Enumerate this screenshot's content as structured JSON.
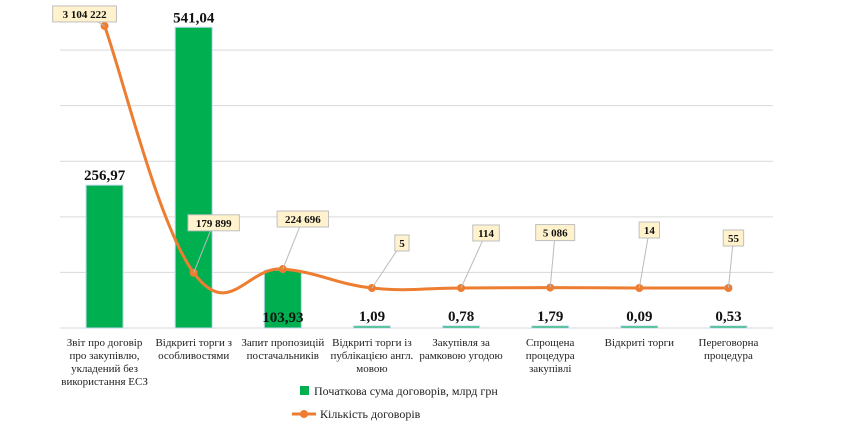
{
  "chart_data": {
    "type": "bar+line",
    "categories": [
      [
        "Звіт про договір",
        "про закупівлю,",
        "укладений без",
        "використання ЕСЗ"
      ],
      [
        "Відкриті торги з",
        "особливостями"
      ],
      [
        "Запит пропозицій",
        "постачальників"
      ],
      [
        "Відкриті торги із",
        "публікацією англ.",
        "мовою"
      ],
      [
        "Закупівля за",
        "рамковою угодою"
      ],
      [
        "Спрощена",
        "процедура",
        "закупівлі"
      ],
      [
        "Відкриті торги"
      ],
      [
        "Переговорна",
        "процедура"
      ]
    ],
    "series": [
      {
        "name": "Початкова сума договорів, млрд грн",
        "type": "bar",
        "color": "#00b050",
        "values": [
          256.97,
          541.04,
          103.93,
          1.09,
          0.78,
          1.79,
          0.09,
          0.53
        ],
        "labels": [
          "256,97",
          "541,04",
          "103,93",
          "1,09",
          "0,78",
          "1,79",
          "0,09",
          "0,53"
        ]
      },
      {
        "name": "Кількість договорів",
        "type": "line",
        "color": "#ed7d31",
        "values": [
          3104222,
          179899,
          224696,
          5,
          114,
          5086,
          14,
          55
        ],
        "labels": [
          "3 104 222",
          "179 899",
          "224 696",
          "5",
          "114",
          "5 086",
          "14",
          "55"
        ]
      }
    ],
    "ylim": [
      0,
      600
    ],
    "y2lim": [
      0,
      3500000
    ],
    "grid": true,
    "legend": "bottom"
  }
}
